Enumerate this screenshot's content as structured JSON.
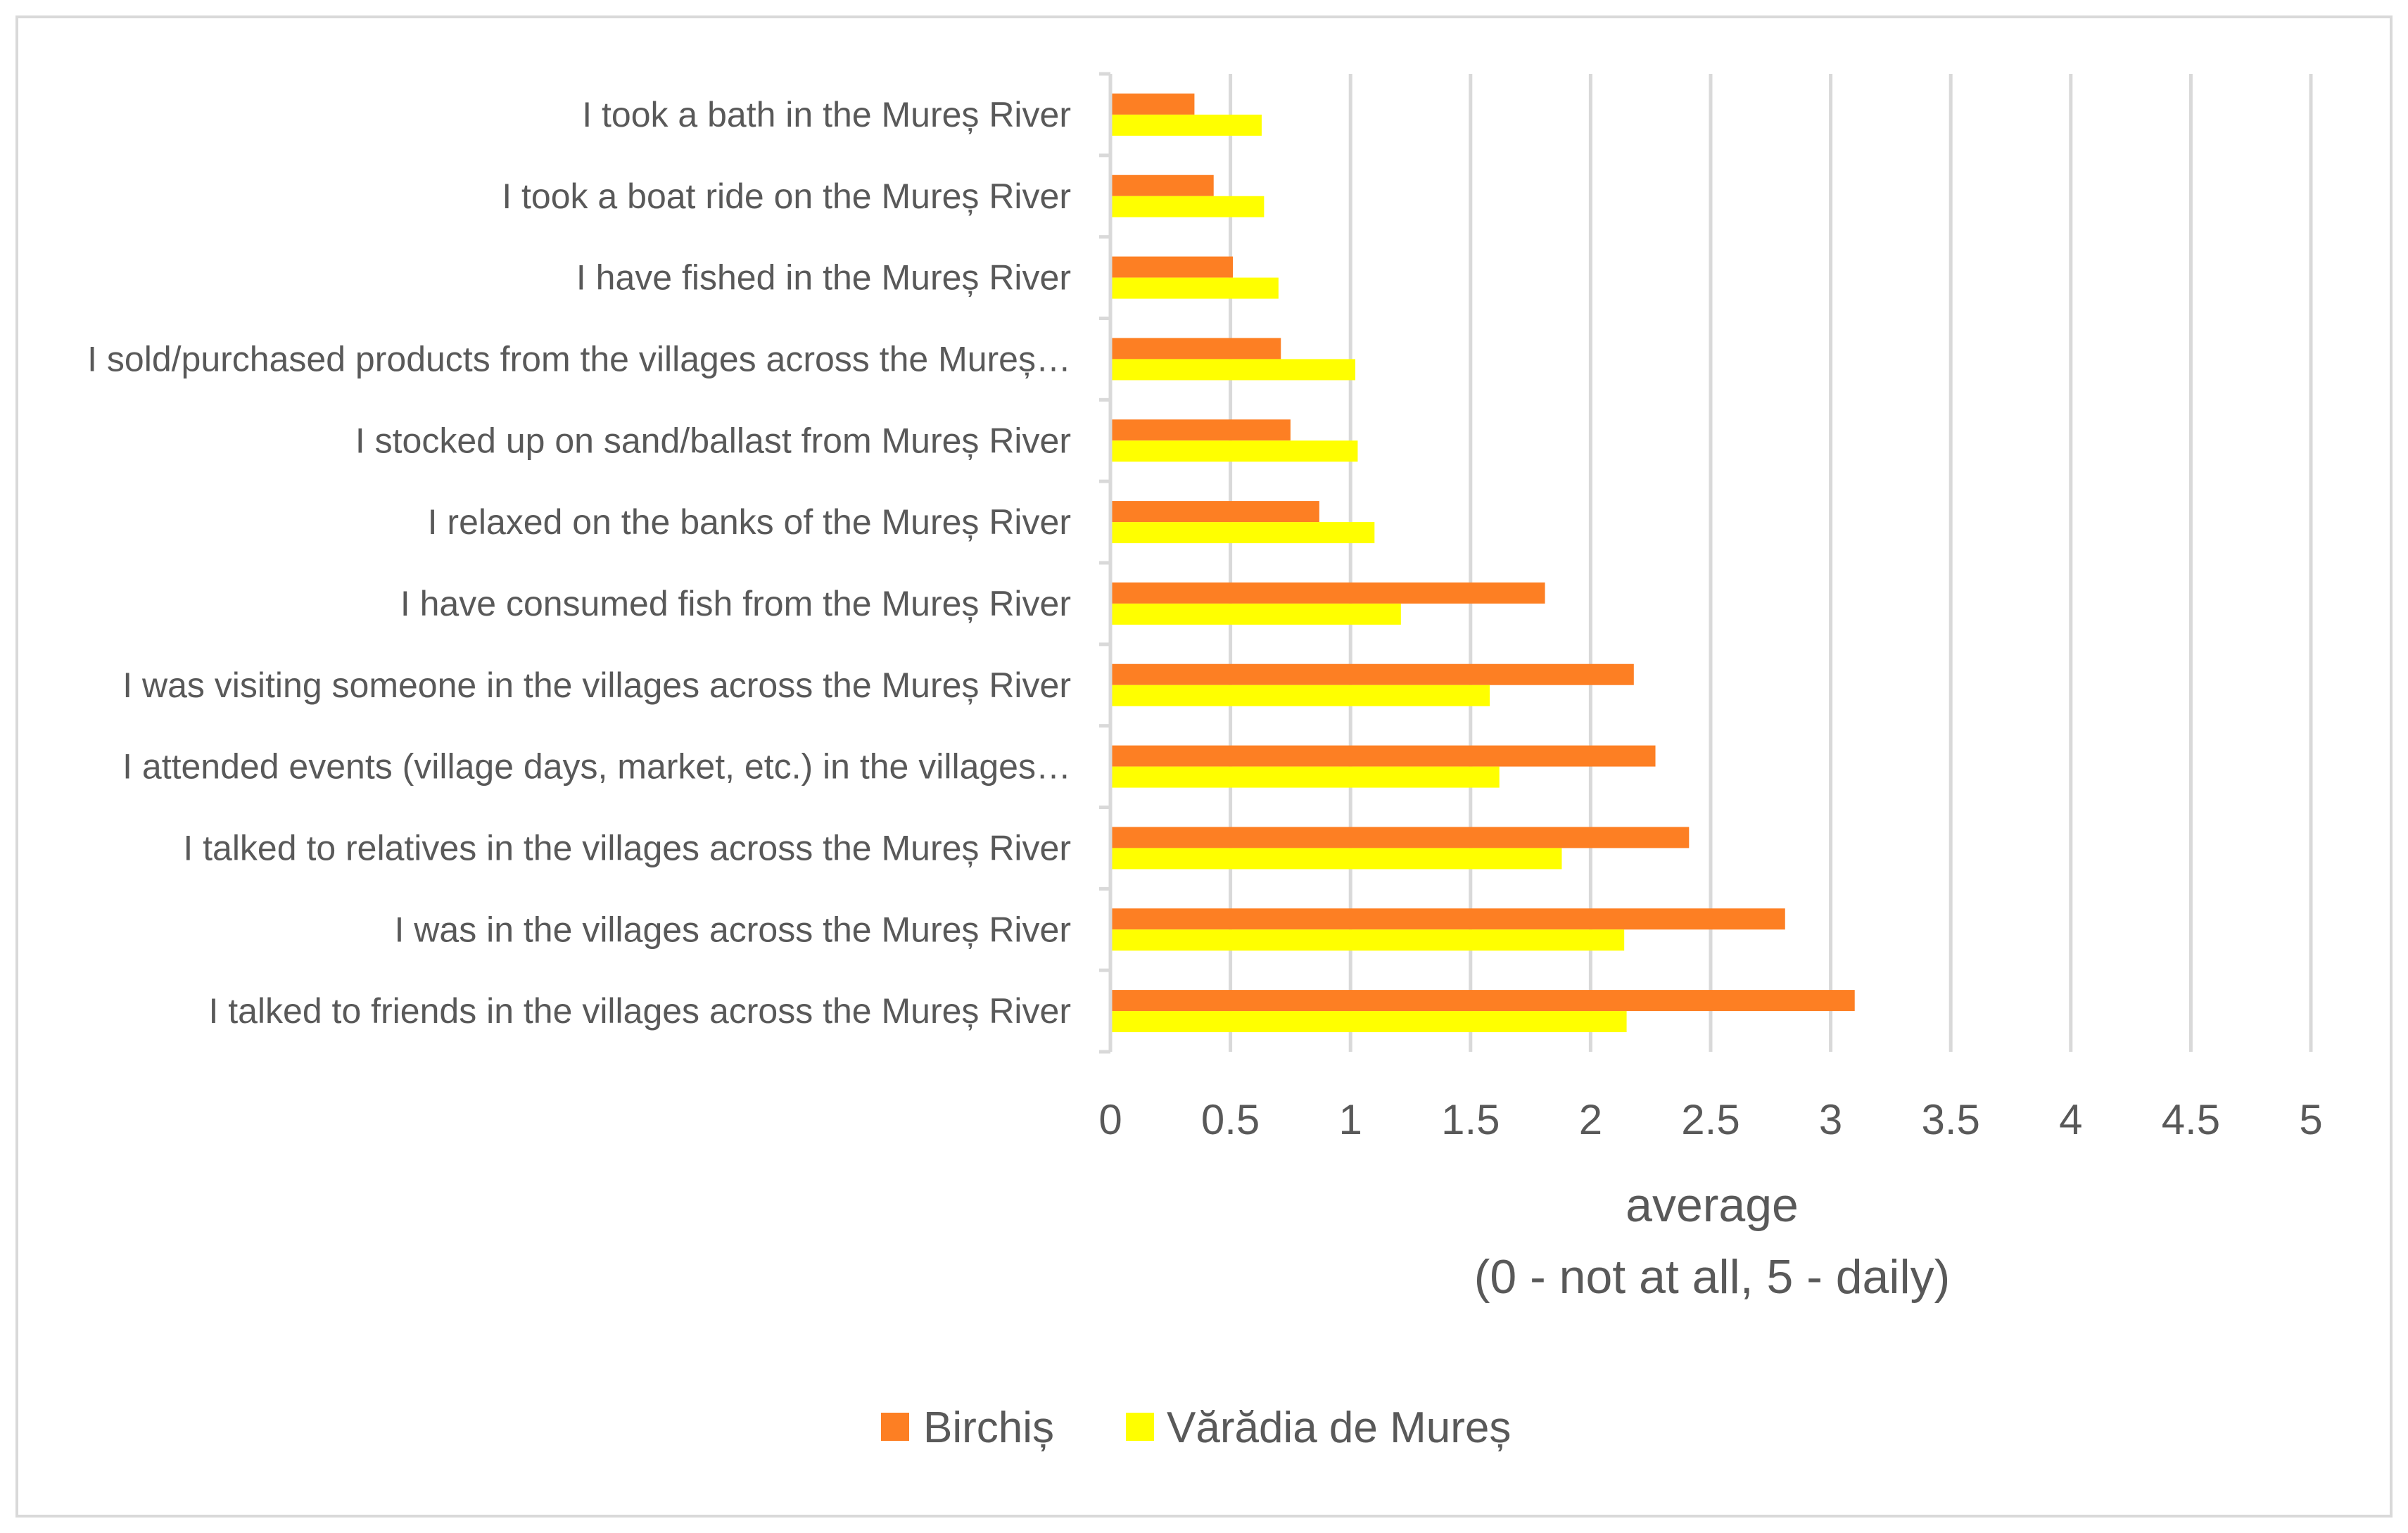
{
  "chart_data": {
    "type": "bar",
    "orientation": "horizontal",
    "categories": [
      "I took a bath in the Mureș River",
      "I took a boat ride on the Mureș River",
      "I have fished in the Mureș River",
      "I sold/purchased products from the villages across the Mureș…",
      "I stocked up on sand/ballast from Mureș River",
      "I relaxed on the banks of the Mureș River",
      "I have consumed fish from the Mureș River",
      "I was visiting someone in the villages across the Mureș River",
      "I attended events (village days, market, etc.) in the villages…",
      "I talked to relatives in the villages across the Mureș River",
      "I was in the villages across the Mureș River",
      "I talked to friends in the villages across the Mureș River"
    ],
    "series": [
      {
        "name": "Birchiș",
        "color": "#fd7f23",
        "values": [
          0.35,
          0.43,
          0.51,
          0.71,
          0.75,
          0.87,
          1.81,
          2.18,
          2.27,
          2.41,
          2.81,
          3.1
        ]
      },
      {
        "name": "Vărădia de Mureș",
        "color": "#ffff00",
        "values": [
          0.63,
          0.64,
          0.7,
          1.02,
          1.03,
          1.1,
          1.21,
          1.58,
          1.62,
          1.88,
          2.14,
          2.15
        ]
      }
    ],
    "xlabel_lines": [
      "average",
      "(0 - not at all, 5 - daily)"
    ],
    "xlim": [
      0,
      5
    ],
    "xticks": [
      "0",
      "0.5",
      "1",
      "1.5",
      "2",
      "2.5",
      "3",
      "3.5",
      "4",
      "4.5",
      "5"
    ],
    "grid": true,
    "legend_position": "bottom"
  }
}
